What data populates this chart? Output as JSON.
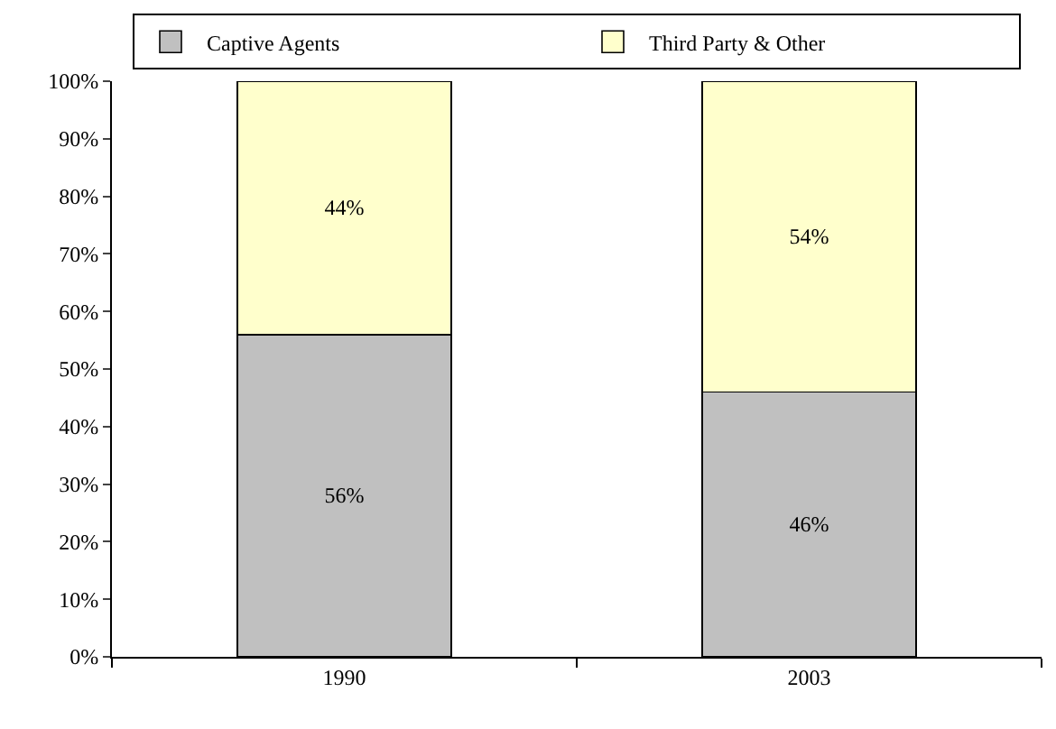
{
  "chart_data": {
    "type": "bar",
    "stacked": true,
    "categories": [
      "1990",
      "2003"
    ],
    "series": [
      {
        "name": "Captive Agents",
        "color": "#c0c0c0",
        "values": [
          56,
          46
        ],
        "value_labels": [
          "56%",
          "46%"
        ]
      },
      {
        "name": "Third Party & Other",
        "color": "#ffffcc",
        "values": [
          44,
          54
        ],
        "value_labels": [
          "44%",
          "54%"
        ]
      }
    ],
    "ylim": [
      0,
      100
    ],
    "yticks": [
      {
        "value": 0,
        "label": "0%"
      },
      {
        "value": 10,
        "label": "10%"
      },
      {
        "value": 20,
        "label": "20%"
      },
      {
        "value": 30,
        "label": "30%"
      },
      {
        "value": 40,
        "label": "40%"
      },
      {
        "value": 50,
        "label": "50%"
      },
      {
        "value": 60,
        "label": "60%"
      },
      {
        "value": 70,
        "label": "70%"
      },
      {
        "value": 80,
        "label": "80%"
      },
      {
        "value": 90,
        "label": "90%"
      },
      {
        "value": 100,
        "label": "100%"
      }
    ],
    "grid": false,
    "legend": "top"
  }
}
